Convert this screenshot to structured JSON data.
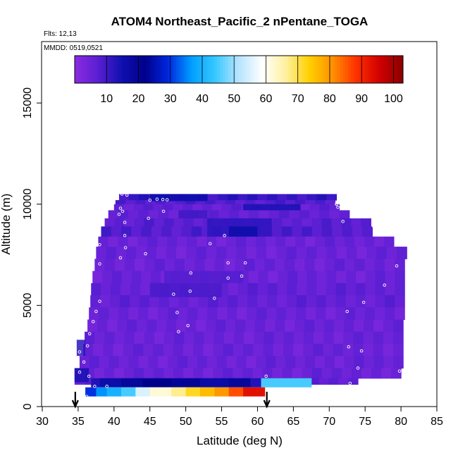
{
  "chart_data": {
    "type": "heatmap",
    "title": "ATOM4 Northeast_Pacific_2 nPentane_TOGA",
    "flights_label": "Flts: 12,13",
    "date_label": "MMDD: 0519,0521",
    "xlabel": "Latitude (deg N)",
    "ylabel": "Altitude (m)",
    "xlim": [
      30,
      85
    ],
    "ylim": [
      0,
      18000
    ],
    "x_ticks": [
      30,
      35,
      40,
      45,
      50,
      55,
      60,
      65,
      70,
      75,
      80,
      85
    ],
    "y_ticks": [
      0,
      5000,
      10000,
      15000
    ],
    "colorbar": {
      "range": [
        0,
        103
      ],
      "ticks": [
        10,
        20,
        30,
        40,
        50,
        60,
        70,
        80,
        90,
        100
      ],
      "stops": [
        "#8b2be2",
        "#5a1ed2",
        "#1010b0",
        "#00008b",
        "#0028e0",
        "#00a0ff",
        "#38c8ff",
        "#b8e4ff",
        "#ffffff",
        "#fff0a0",
        "#ffd000",
        "#ff9000",
        "#ff3000",
        "#d00000",
        "#8b0000"
      ]
    },
    "curtain_bands": [
      {
        "alt": [
          10200,
          10500
        ],
        "lat": [
          40.7,
          71.0
        ],
        "value": 11
      },
      {
        "alt": [
          10000,
          10200
        ],
        "lat": [
          40.2,
          70.8
        ],
        "value": 8
      },
      {
        "alt": [
          9700,
          10000
        ],
        "lat": [
          40.0,
          71.4
        ],
        "value": 6
      },
      {
        "alt": [
          9300,
          9700
        ],
        "lat": [
          39.2,
          72.8
        ],
        "value": 6
      },
      {
        "alt": [
          8900,
          9300
        ],
        "lat": [
          38.7,
          75.8
        ],
        "value": 7
      },
      {
        "alt": [
          8400,
          8900
        ],
        "lat": [
          38.2,
          76.0
        ],
        "value": 8
      },
      {
        "alt": [
          7900,
          8400
        ],
        "lat": [
          37.8,
          79.0
        ],
        "value": 5
      },
      {
        "alt": [
          7300,
          7900
        ],
        "lat": [
          37.5,
          80.8
        ],
        "value": 5
      },
      {
        "alt": [
          6700,
          7300
        ],
        "lat": [
          37.3,
          80.5
        ],
        "value": 5
      },
      {
        "alt": [
          6100,
          6700
        ],
        "lat": [
          37.0,
          80.5
        ],
        "value": 5
      },
      {
        "alt": [
          5500,
          6100
        ],
        "lat": [
          36.8,
          80.5
        ],
        "value": 6
      },
      {
        "alt": [
          4900,
          5500
        ],
        "lat": [
          36.7,
          80.5
        ],
        "value": 6
      },
      {
        "alt": [
          4300,
          4900
        ],
        "lat": [
          36.5,
          80.5
        ],
        "value": 5
      },
      {
        "alt": [
          3700,
          4300
        ],
        "lat": [
          36.3,
          80.3
        ],
        "value": 5
      },
      {
        "alt": [
          3100,
          3700
        ],
        "lat": [
          35.9,
          80.3
        ],
        "value": 5
      },
      {
        "alt": [
          2500,
          3100
        ],
        "lat": [
          35.7,
          80.3
        ],
        "value": 5
      },
      {
        "alt": [
          1900,
          2500
        ],
        "lat": [
          35.2,
          80.3
        ],
        "value": 5
      },
      {
        "alt": [
          1400,
          1900
        ],
        "lat": [
          34.5,
          80.0
        ],
        "value": 5
      },
      {
        "alt": [
          1100,
          1400
        ],
        "lat": [
          34.5,
          74.0
        ],
        "value": 7
      }
    ],
    "curtain_patches": [
      {
        "alt": [
          10150,
          10500
        ],
        "lat": [
          45.0,
          53.0
        ],
        "value": 16
      },
      {
        "alt": [
          9700,
          10000
        ],
        "lat": [
          58.0,
          66.0
        ],
        "value": 14
      },
      {
        "alt": [
          9300,
          9700
        ],
        "lat": [
          49.0,
          53.0
        ],
        "value": 10
      },
      {
        "alt": [
          8400,
          9300
        ],
        "lat": [
          53.0,
          62.0
        ],
        "value": 12
      },
      {
        "alt": [
          8400,
          8900
        ],
        "lat": [
          56.0,
          60.0
        ],
        "value": 16
      },
      {
        "alt": [
          1200,
          1900
        ],
        "lat": [
          34.5,
          36.5
        ],
        "value": 14
      },
      {
        "alt": [
          2500,
          3300
        ],
        "lat": [
          34.8,
          36.0
        ],
        "value": 12
      },
      {
        "alt": [
          5400,
          6100
        ],
        "lat": [
          45.0,
          55.0
        ],
        "value": 9
      },
      {
        "alt": [
          6100,
          6700
        ],
        "lat": [
          47.0,
          58.0
        ],
        "value": 8
      }
    ],
    "boundary_layer": {
      "alt_top": [
        1400,
        950,
        500
      ],
      "segments_top": [
        {
          "lat": [
            36.8,
            38.0
          ],
          "value": 13
        },
        {
          "lat": [
            38.0,
            41.0
          ],
          "value": 16
        },
        {
          "lat": [
            41.0,
            44.0
          ],
          "value": 19
        },
        {
          "lat": [
            44.0,
            48.0
          ],
          "value": 22
        },
        {
          "lat": [
            48.0,
            52.0
          ],
          "value": 20
        },
        {
          "lat": [
            52.0,
            56.0
          ],
          "value": 17
        },
        {
          "lat": [
            56.0,
            59.0
          ],
          "value": 19
        },
        {
          "lat": [
            59.0,
            60.5
          ],
          "value": 13
        },
        {
          "lat": [
            60.5,
            67.5
          ],
          "value": 45
        }
      ],
      "segments_bottom": [
        {
          "lat": [
            36.0,
            37.5
          ],
          "value": 30
        },
        {
          "lat": [
            37.5,
            39.0
          ],
          "value": 36
        },
        {
          "lat": [
            39.0,
            41.0
          ],
          "value": 40
        },
        {
          "lat": [
            41.0,
            43.0
          ],
          "value": 45
        },
        {
          "lat": [
            43.0,
            45.0
          ],
          "value": 55
        },
        {
          "lat": [
            45.0,
            48.0
          ],
          "value": 62
        },
        {
          "lat": [
            48.0,
            50.0
          ],
          "value": 67
        },
        {
          "lat": [
            50.0,
            52.0
          ],
          "value": 72
        },
        {
          "lat": [
            52.0,
            54.0
          ],
          "value": 76
        },
        {
          "lat": [
            54.0,
            56.0
          ],
          "value": 80
        },
        {
          "lat": [
            56.0,
            58.0
          ],
          "value": 86
        },
        {
          "lat": [
            58.0,
            61.0
          ],
          "value": 93
        }
      ]
    },
    "samples": [
      [
        41.1,
        10500
      ],
      [
        41.8,
        10450
      ],
      [
        45.0,
        10200
      ],
      [
        46.0,
        10250
      ],
      [
        46.8,
        10230
      ],
      [
        47.4,
        10220
      ],
      [
        40.9,
        9800
      ],
      [
        41.2,
        9650
      ],
      [
        40.7,
        9500
      ],
      [
        46.9,
        9650
      ],
      [
        44.8,
        9300
      ],
      [
        71.0,
        10000
      ],
      [
        71.2,
        9850
      ],
      [
        38.2,
        9050
      ],
      [
        41.5,
        9100
      ],
      [
        71.9,
        9150
      ],
      [
        76.2,
        8900
      ],
      [
        76.7,
        8900
      ],
      [
        41.5,
        8450
      ],
      [
        55.4,
        8450
      ],
      [
        38.0,
        8000
      ],
      [
        41.6,
        7850
      ],
      [
        53.4,
        8050
      ],
      [
        44.4,
        7550
      ],
      [
        38.0,
        7050
      ],
      [
        40.9,
        7350
      ],
      [
        55.9,
        7100
      ],
      [
        58.3,
        7100
      ],
      [
        79.4,
        6950
      ],
      [
        50.7,
        6600
      ],
      [
        55.9,
        6350
      ],
      [
        57.8,
        6450
      ],
      [
        38.0,
        5200
      ],
      [
        48.3,
        5550
      ],
      [
        50.6,
        5700
      ],
      [
        54.0,
        5350
      ],
      [
        74.8,
        5150
      ],
      [
        77.7,
        6000
      ],
      [
        37.5,
        4700
      ],
      [
        48.8,
        4650
      ],
      [
        72.5,
        4700
      ],
      [
        37.1,
        4200
      ],
      [
        36.6,
        3600
      ],
      [
        49.0,
        3700
      ],
      [
        50.3,
        4000
      ],
      [
        36.3,
        3000
      ],
      [
        72.7,
        2950
      ],
      [
        74.5,
        2750
      ],
      [
        35.2,
        2700
      ],
      [
        35.8,
        2200
      ],
      [
        74.0,
        1900
      ],
      [
        79.8,
        1750
      ],
      [
        35.2,
        1700
      ],
      [
        36.5,
        1500
      ],
      [
        37.3,
        1000
      ],
      [
        39.0,
        1000
      ],
      [
        61.2,
        1500
      ],
      [
        72.9,
        1150
      ],
      [
        36.2,
        500
      ]
    ],
    "arrows": [
      {
        "lat": 34.6,
        "label": ""
      },
      {
        "lat": 61.3,
        "label": ""
      }
    ]
  }
}
